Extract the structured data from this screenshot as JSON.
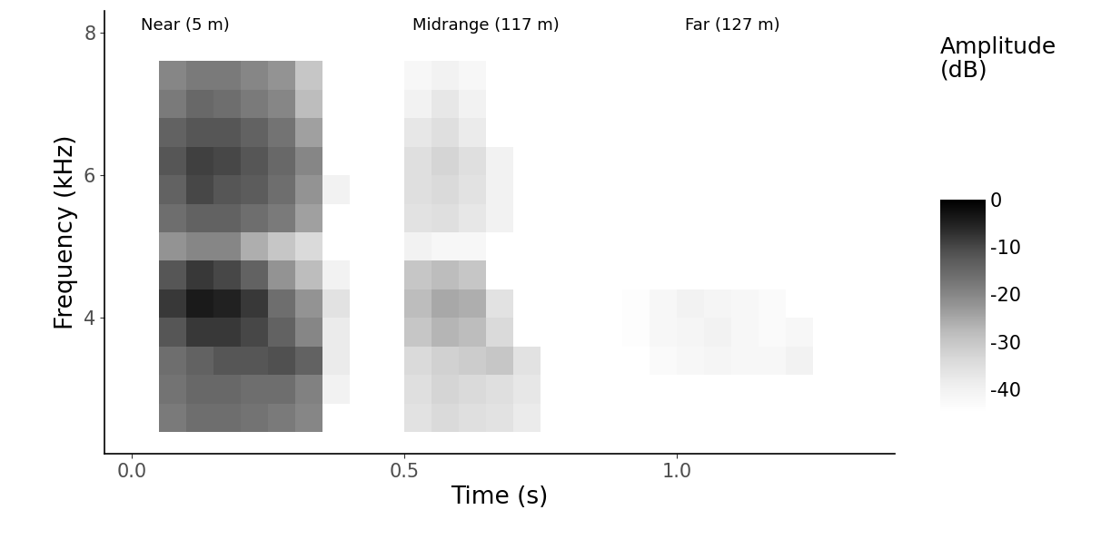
{
  "chart_data": {
    "type": "heatmap",
    "xlabel": "Time (s)",
    "ylabel": "Frequency (kHz)",
    "annotations": [
      "Near (5 m)",
      "Midrange (117 m)",
      "Far (127 m)"
    ],
    "xlim": [
      -0.05,
      1.4
    ],
    "xticks": [
      {
        "value": 0,
        "label": "0.0"
      },
      0.5,
      {
        "value": 1,
        "label": "1.0"
      }
    ],
    "ylim": [
      2.1,
      8.3
    ],
    "yticks": [
      4,
      6,
      8
    ],
    "x_edges": [
      0.05,
      0.1,
      0.15,
      0.2,
      0.25,
      0.3,
      0.35,
      0.4,
      0.45,
      0.5,
      0.55,
      0.6,
      0.65,
      0.7,
      0.75,
      0.8,
      0.85,
      0.9,
      0.95,
      1.0,
      1.05,
      1.1,
      1.15,
      1.2,
      1.25,
      1.3
    ],
    "y_edges": [
      2.4,
      2.8,
      3.2,
      3.6,
      4.0,
      4.4,
      4.8,
      5.2,
      5.6,
      6.0,
      6.4,
      6.8,
      7.2,
      7.6
    ],
    "cells": [
      [
        -18,
        -16,
        -16,
        -17,
        -18,
        -20,
        null,
        null,
        null,
        -36,
        -34,
        -35,
        -36,
        -38,
        null,
        null,
        null,
        null,
        null,
        null,
        null,
        null,
        null,
        null,
        null
      ],
      [
        -17,
        -15,
        -15,
        -16,
        -16,
        -19,
        -40,
        null,
        null,
        -35,
        -33,
        -34,
        -35,
        -37,
        null,
        null,
        null,
        null,
        null,
        null,
        null,
        null,
        null,
        null,
        null
      ],
      [
        -16,
        -14,
        -12,
        -12,
        -11,
        -14,
        -38,
        null,
        null,
        -34,
        -32,
        -31,
        -30,
        -36,
        null,
        null,
        null,
        null,
        -43,
        -42,
        -41,
        -42,
        -42,
        -40,
        null
      ],
      [
        -12,
        -8,
        -8,
        -10,
        -14,
        -20,
        -38,
        null,
        null,
        -30,
        -27,
        -28,
        -34,
        null,
        null,
        null,
        null,
        -44,
        -42,
        -41,
        -40,
        -42,
        -43,
        -42,
        null
      ],
      [
        -8,
        -4,
        -5,
        -8,
        -16,
        -22,
        -36,
        null,
        null,
        -28,
        -25,
        -26,
        -36,
        null,
        null,
        null,
        null,
        -44,
        -42,
        -40,
        -41,
        -42,
        -43,
        null,
        null
      ],
      [
        -12,
        -8,
        -10,
        -14,
        -22,
        -28,
        -40,
        null,
        null,
        -30,
        -28,
        -30,
        null,
        null,
        null,
        null,
        null,
        null,
        null,
        null,
        null,
        null,
        null,
        null,
        null
      ],
      [
        -22,
        -20,
        -20,
        -26,
        -30,
        -34,
        null,
        null,
        null,
        -40,
        -42,
        -42,
        null,
        null,
        null,
        null,
        null,
        null,
        null,
        null,
        null,
        null,
        null,
        null,
        null
      ],
      [
        -16,
        -14,
        -14,
        -16,
        -18,
        -24,
        null,
        null,
        null,
        -36,
        -35,
        -37,
        -40,
        null,
        null,
        null,
        null,
        null,
        null,
        null,
        null,
        null,
        null,
        null,
        null
      ],
      [
        -14,
        -10,
        -12,
        -13,
        -16,
        -22,
        -40,
        null,
        null,
        -35,
        -34,
        -36,
        -40,
        null,
        null,
        null,
        null,
        null,
        null,
        null,
        null,
        null,
        null,
        null,
        null
      ],
      [
        -12,
        -9,
        -10,
        -12,
        -15,
        -20,
        null,
        null,
        null,
        -35,
        -33,
        -35,
        -40,
        null,
        null,
        null,
        null,
        null,
        null,
        null,
        null,
        null,
        null,
        null,
        null
      ],
      [
        -14,
        -12,
        -12,
        -14,
        -17,
        -24,
        null,
        null,
        null,
        -37,
        -35,
        -38,
        null,
        null,
        null,
        null,
        null,
        null,
        null,
        null,
        null,
        null,
        null,
        null,
        null
      ],
      [
        -18,
        -15,
        -16,
        -18,
        -20,
        -28,
        null,
        null,
        null,
        -40,
        -37,
        -40,
        null,
        null,
        null,
        null,
        null,
        null,
        null,
        null,
        null,
        null,
        null,
        null,
        null
      ],
      [
        -20,
        -18,
        -18,
        -20,
        -22,
        -30,
        null,
        null,
        null,
        -42,
        -40,
        -42,
        null,
        null,
        null,
        null,
        null,
        null,
        null,
        null,
        null,
        null,
        null,
        null,
        null
      ]
    ],
    "colorbar": {
      "title": "Amplitude\n(dB)",
      "range": [
        -45,
        0
      ],
      "ticks": [
        0,
        -10,
        -20,
        -30,
        -40
      ]
    }
  }
}
